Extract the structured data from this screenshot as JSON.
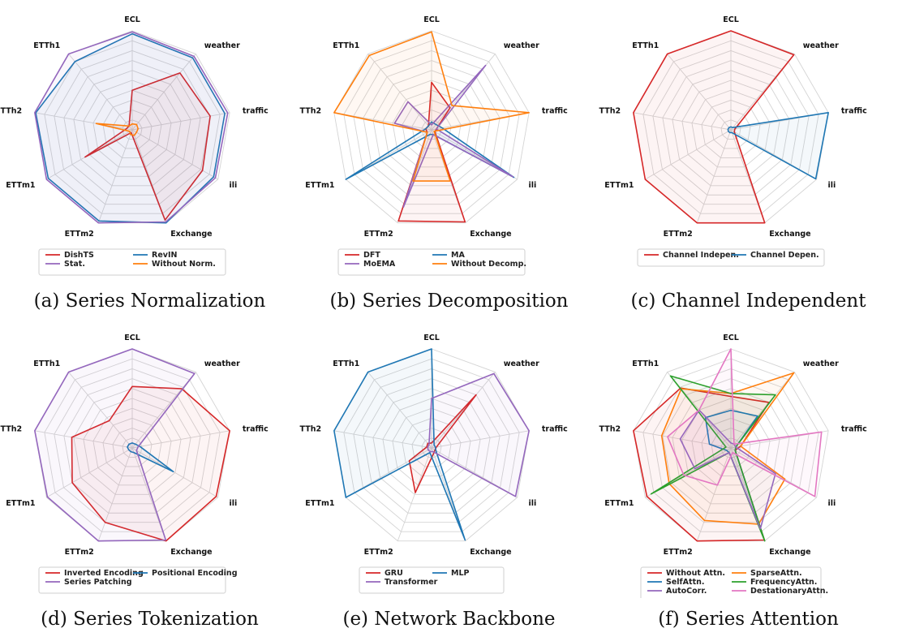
{
  "axes": [
    "ECL",
    "weather",
    "traffic",
    "ili",
    "Exchange",
    "ETTm2",
    "ETTm1",
    "ETTh2",
    "ETTh1"
  ],
  "chart_data": [
    {
      "type": "radar",
      "caption": "(a) Series Normalization",
      "legend_columns": 2,
      "series": [
        {
          "name": "DishTS",
          "color": "#d62728",
          "values": [
            0.4,
            0.75,
            0.8,
            0.82,
            0.97,
            0.03,
            0.55,
            0.06,
            0.05
          ]
        },
        {
          "name": "RevIN",
          "color": "#1f77b4",
          "values": [
            0.97,
            0.95,
            0.95,
            0.95,
            1.0,
            0.98,
            0.98,
            0.99,
            0.9
          ]
        },
        {
          "name": "Stat.",
          "color": "#9467bd",
          "values": [
            0.99,
            0.97,
            0.98,
            0.97,
            0.99,
            1.0,
            1.0,
            1.0,
            1.0
          ]
        },
        {
          "name": "Without Norm.",
          "color": "#ff7f0e",
          "values": [
            0.06,
            0.07,
            0.06,
            0.05,
            0.06,
            0.05,
            0.03,
            0.37,
            0.05
          ]
        }
      ]
    },
    {
      "type": "radar",
      "caption": "(b) Series Decomposition",
      "legend_columns": 2,
      "series": [
        {
          "name": "DFT",
          "color": "#d62728",
          "values": [
            0.48,
            0.29,
            0.05,
            0.04,
            0.99,
            0.98,
            0.05,
            0.06,
            0.05
          ]
        },
        {
          "name": "MA",
          "color": "#1f77b4",
          "values": [
            0.08,
            0.07,
            0.11,
            0.96,
            0.05,
            0.05,
            1.0,
            0.06,
            0.05
          ]
        },
        {
          "name": "MoEMA",
          "color": "#9467bd",
          "values": [
            0.05,
            0.85,
            0.05,
            0.95,
            0.05,
            0.83,
            0.05,
            0.38,
            0.37
          ]
        },
        {
          "name": "Without Decomp.",
          "color": "#ff7f0e",
          "values": [
            0.99,
            0.32,
            1.0,
            0.03,
            0.55,
            0.55,
            0.05,
            1.0,
            0.98
          ]
        }
      ]
    },
    {
      "type": "radar",
      "caption": "(c) Channel Independent",
      "legend_columns": 2,
      "series": [
        {
          "name": "Channel Indepen.",
          "color": "#d62728",
          "values": [
            1.0,
            0.99,
            0.04,
            0.04,
            1.0,
            1.0,
            1.0,
            1.0,
            1.0
          ]
        },
        {
          "name": "Channel Depen.",
          "color": "#1f77b4",
          "values": [
            0.03,
            0.03,
            1.0,
            0.99,
            0.03,
            0.03,
            0.03,
            0.03,
            0.03
          ]
        }
      ]
    },
    {
      "type": "radar",
      "caption": "(d) Series Tokenization",
      "legend_columns": 2,
      "series": [
        {
          "name": "Inverted Encoding",
          "color": "#d62728",
          "values": [
            0.62,
            0.78,
            1.0,
            0.98,
            1.0,
            0.8,
            0.7,
            0.62,
            0.36
          ]
        },
        {
          "name": "Positional Encoding",
          "color": "#1f77b4",
          "values": [
            0.05,
            0.05,
            0.08,
            0.48,
            0.05,
            0.04,
            0.04,
            0.05,
            0.05
          ]
        },
        {
          "name": "Series Patching",
          "color": "#9467bd",
          "values": [
            1.0,
            0.98,
            0.06,
            0.05,
            0.99,
            1.0,
            0.99,
            1.0,
            1.0
          ]
        }
      ]
    },
    {
      "type": "radar",
      "caption": "(e) Network Backbone",
      "legend_columns": 2,
      "series": [
        {
          "name": "GRU",
          "color": "#d62728",
          "values": [
            0.05,
            0.7,
            0.05,
            0.04,
            0.06,
            0.48,
            0.26,
            0.05,
            0.06
          ]
        },
        {
          "name": "MLP",
          "color": "#1f77b4",
          "values": [
            1.0,
            0.04,
            0.04,
            0.05,
            0.99,
            0.05,
            1.0,
            1.0,
            1.0
          ]
        },
        {
          "name": "Transformer",
          "color": "#9467bd",
          "values": [
            0.5,
            0.98,
            1.0,
            0.98,
            0.04,
            0.04,
            0.04,
            0.04,
            0.04
          ]
        }
      ]
    },
    {
      "type": "radar",
      "caption": "(f) Series Attention",
      "legend_columns": 2,
      "series": [
        {
          "name": "Without Attn.",
          "color": "#d62728",
          "values": [
            0.52,
            0.6,
            0.1,
            0.05,
            0.99,
            1.0,
            0.98,
            1.0,
            0.79
          ]
        },
        {
          "name": "SparseAttn.",
          "color": "#ff7f0e",
          "values": [
            0.55,
            0.99,
            0.1,
            0.63,
            0.82,
            0.78,
            0.72,
            0.71,
            0.78
          ]
        },
        {
          "name": "SelfAttn.",
          "color": "#1f77b4",
          "values": [
            0.38,
            0.42,
            0.05,
            0.05,
            0.95,
            0.05,
            0.05,
            0.22,
            0.4
          ]
        },
        {
          "name": "FrequencyAttn.",
          "color": "#2ca02c",
          "values": [
            0.55,
            0.7,
            0.05,
            0.05,
            1.0,
            0.05,
            0.93,
            0.05,
            0.95
          ]
        },
        {
          "name": "AutoCorr.",
          "color": "#9467bd",
          "values": [
            0.05,
            0.05,
            0.05,
            0.52,
            0.87,
            0.05,
            0.42,
            0.52,
            0.5
          ]
        },
        {
          "name": "DestationaryAttn.",
          "color": "#e377c2",
          "values": [
            1.0,
            0.05,
            0.93,
            0.98,
            0.05,
            0.4,
            0.55,
            0.65,
            0.5
          ]
        }
      ]
    }
  ]
}
